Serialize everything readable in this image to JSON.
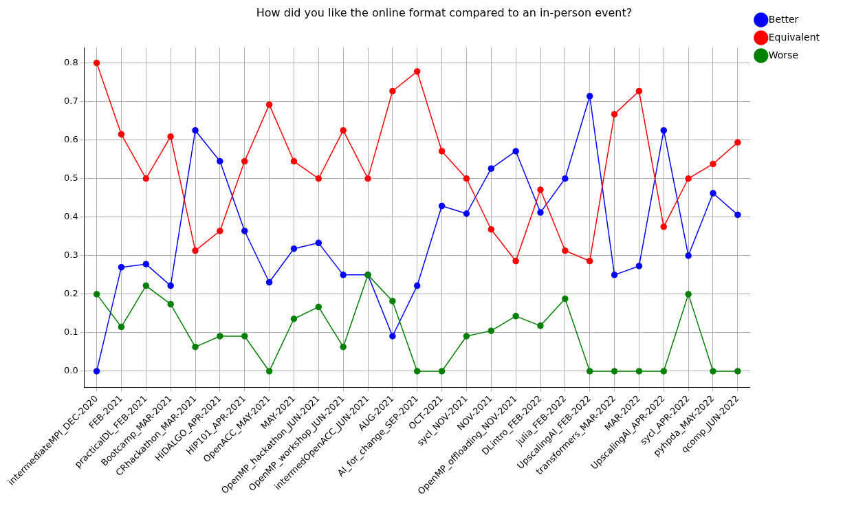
{
  "chart_data": {
    "type": "line",
    "title": "How did you like the online format compared to an in-person event?",
    "categories": [
      "intermediateMPI_DEC-2020",
      "FEB-2021",
      "practicalDL_FEB-2021",
      "Bootcamp_MAR-2021",
      "CRhackathon_MAR-2021",
      "HiDALGO_APR-2021",
      "HIP101_APR-2021",
      "OpenACC_MAY-2021",
      "MAY-2021",
      "OpenMP_hackathon_JUN-2021",
      "OpenMP_workshop_JUN-2021",
      "intermedOpenACC_JUN-2021",
      "AUG-2021",
      "AI_for_change_SEP-2021",
      "OCT-2021",
      "sycl_NOV-2021",
      "NOV-2021",
      "OpenMP_offloading_NOV-2021",
      "DLintro_FEB-2022",
      "julia_FEB-2022",
      "UpscalingAI_FEB-2022",
      "transformers_MAR-2022",
      "MAR-2022",
      "UpscalingAI_APR-2022",
      "sycl_APR-2022",
      "pyhpda_MAY-2022",
      "qcomp_JUN-2022"
    ],
    "series": [
      {
        "name": "Better",
        "color": "#0000ff",
        "values": [
          0,
          0.27,
          0.278,
          0.222,
          0.625,
          0.545,
          0.364,
          0.231,
          0.318,
          0.333,
          0.25,
          0.25,
          0.091,
          0.222,
          0.429,
          0.409,
          0.526,
          0.571,
          0.412,
          0.5,
          0.714,
          0.25,
          0.273,
          0.625,
          0.3,
          0.462,
          0.406
        ]
      },
      {
        "name": "Equivalent",
        "color": "#ff0000",
        "values": [
          0.8,
          0.615,
          0.5,
          0.609,
          0.313,
          0.364,
          0.545,
          0.692,
          0.545,
          0.5,
          0.625,
          0.5,
          0.727,
          0.778,
          0.571,
          0.5,
          0.368,
          0.286,
          0.471,
          0.313,
          0.286,
          0.667,
          0.727,
          0.375,
          0.5,
          0.538,
          0.594
        ]
      },
      {
        "name": "Worse",
        "color": "#008000",
        "values": [
          0.2,
          0.115,
          0.222,
          0.174,
          0.063,
          0.091,
          0.091,
          0,
          0.136,
          0.167,
          0.063,
          0.25,
          0.182,
          0,
          0,
          0.091,
          0.105,
          0.143,
          0.118,
          0.188,
          0,
          0,
          0,
          0,
          0.2,
          0,
          0
        ]
      }
    ],
    "ylim": [
      -0.042,
      0.84
    ],
    "yticks": [
      {
        "value": 0,
        "label": "0.0"
      },
      0.1,
      0.2,
      0.3,
      0.4,
      0.5,
      0.6,
      0.7,
      0.8
    ],
    "grid": true,
    "legend": "top right",
    "marker": "circle",
    "line_style": "solid"
  }
}
